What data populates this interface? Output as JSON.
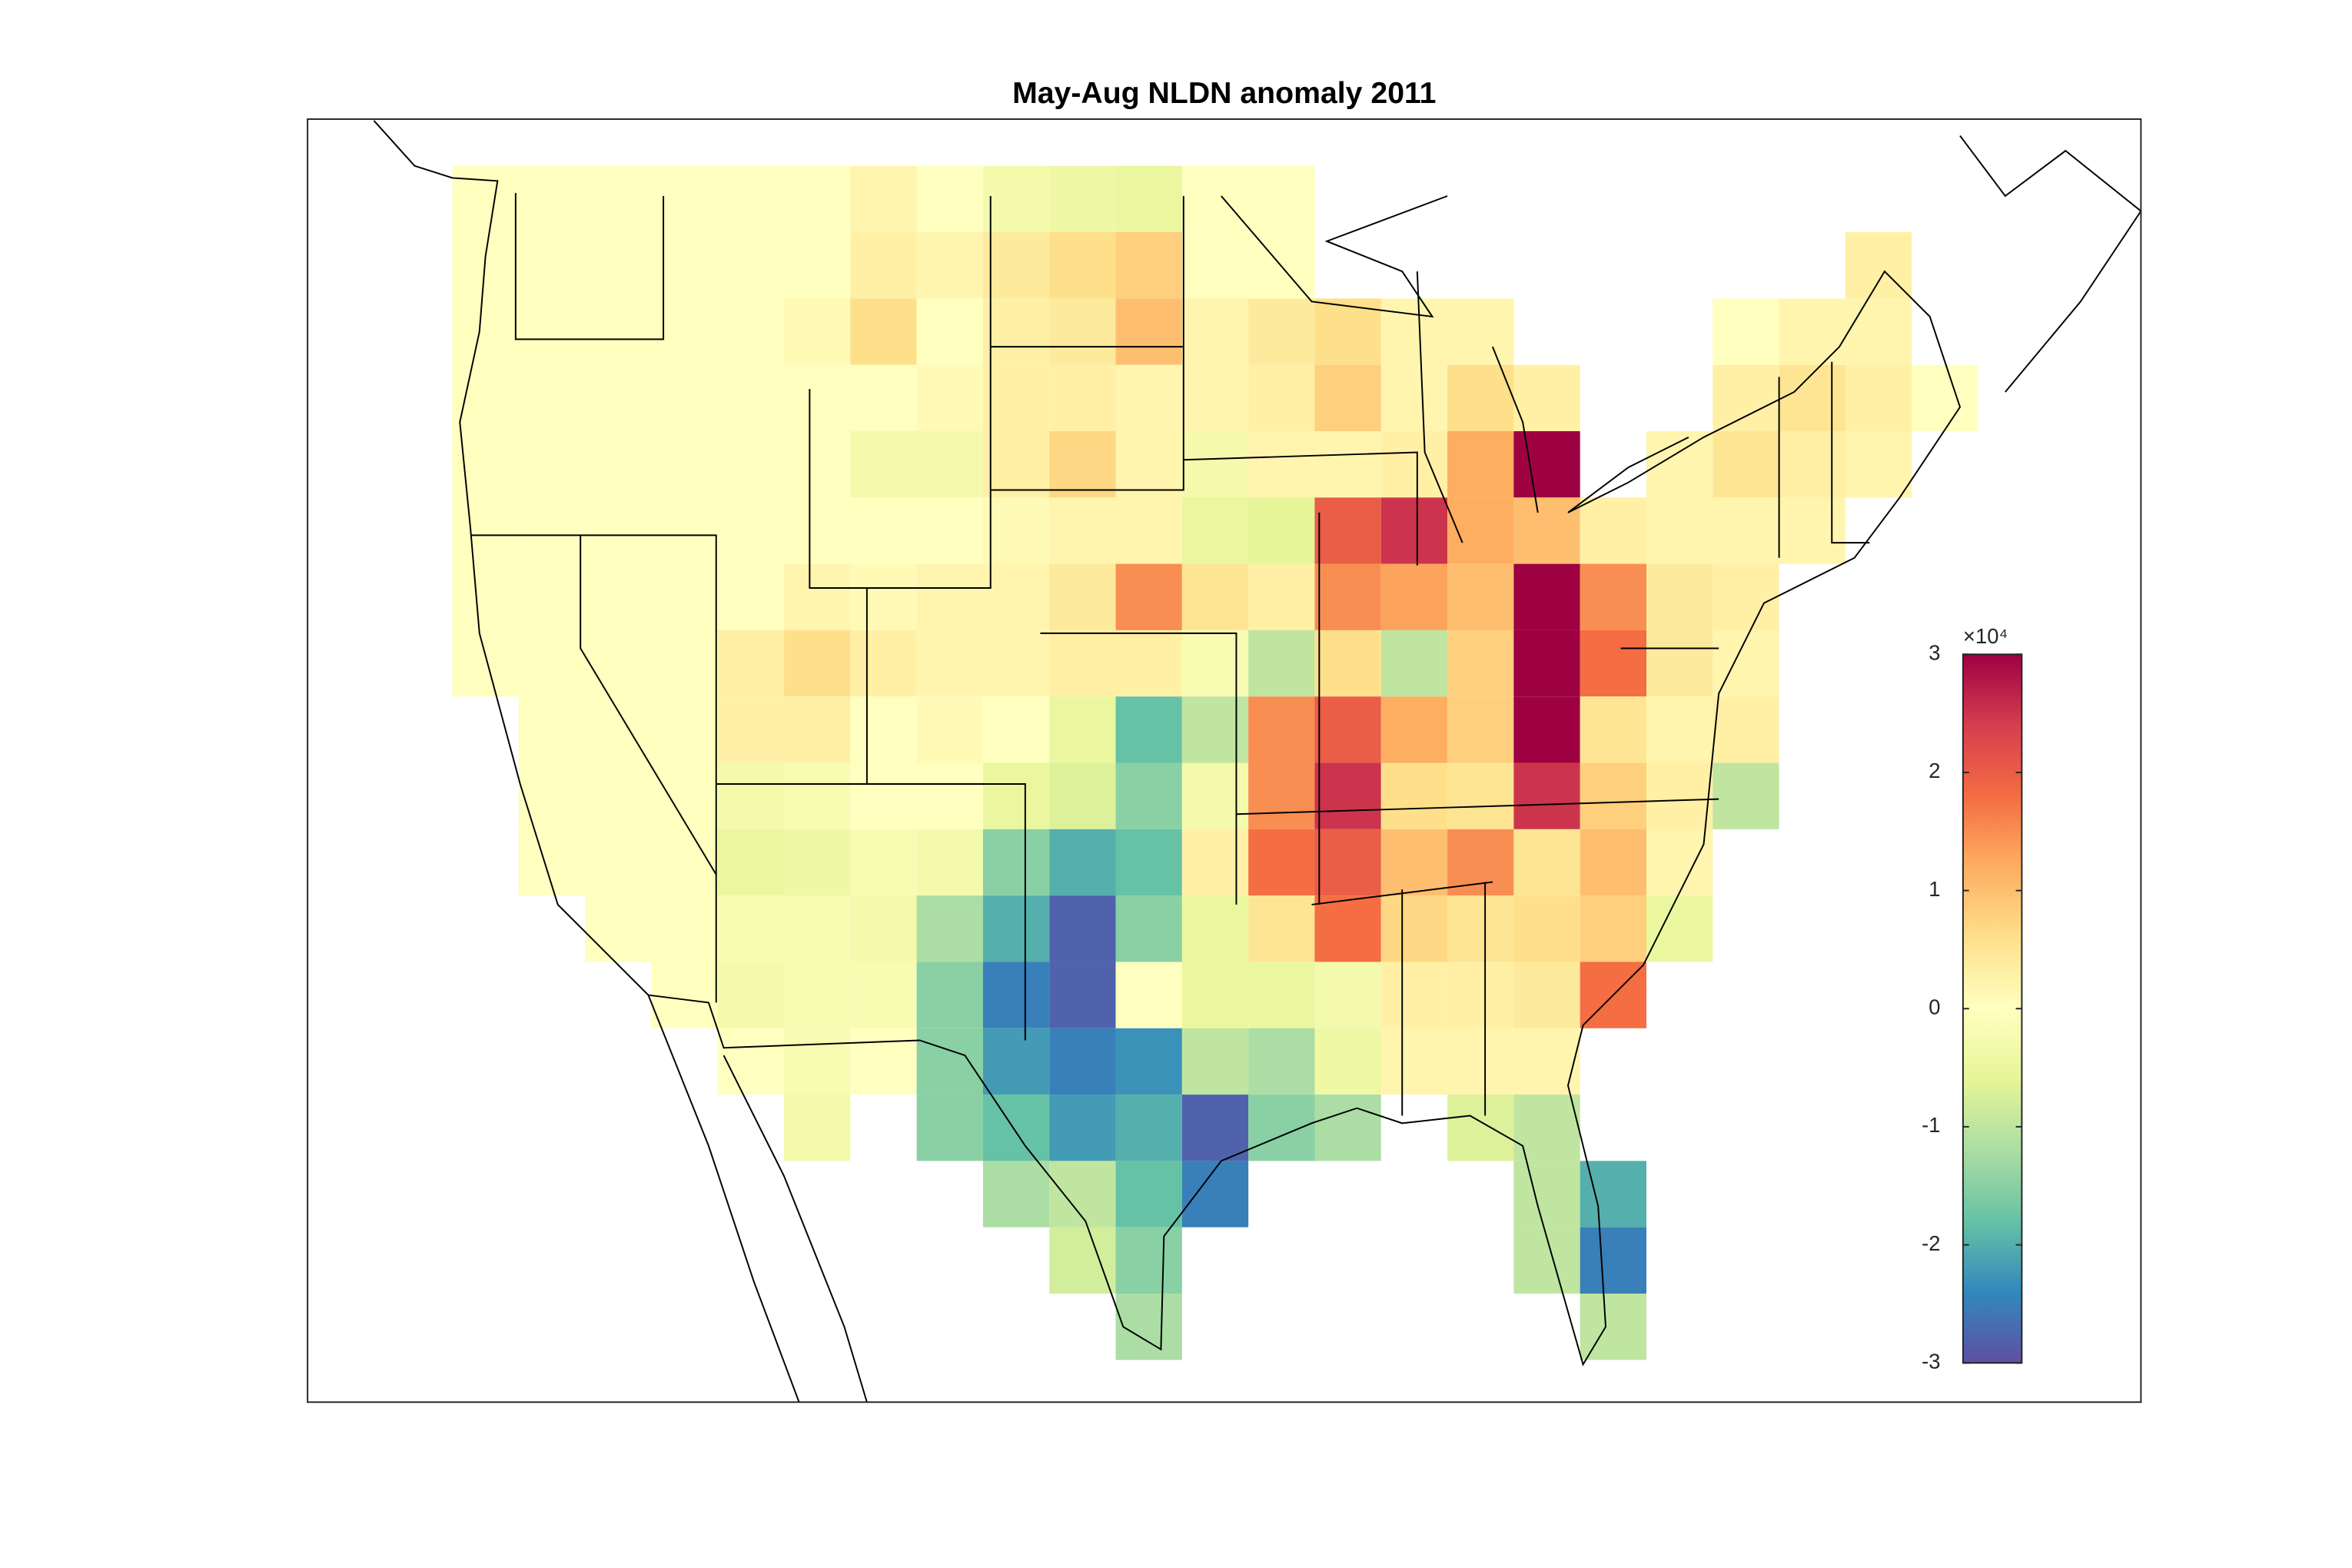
{
  "chart_data": {
    "type": "heatmap",
    "title": "May-Aug NLDN anomaly 2011",
    "colorbar_exponent": "×10⁴",
    "clim": [
      -3,
      3
    ],
    "colorbar_ticks": [
      -3,
      -2,
      -1,
      0,
      1,
      2,
      3
    ],
    "values": [
      [
        0,
        0,
        0,
        0,
        0,
        0,
        0.2,
        0,
        -0.3,
        -0.4,
        -0.5,
        0,
        0,
        null,
        null,
        null,
        null,
        null,
        null,
        null,
        null,
        null,
        null
      ],
      [
        0,
        0,
        0,
        0,
        0,
        0,
        0.3,
        0.2,
        0.4,
        0.6,
        0.8,
        0,
        0,
        null,
        null,
        null,
        null,
        null,
        null,
        null,
        null,
        0.3,
        null
      ],
      [
        0,
        0,
        0,
        0,
        0,
        0.1,
        0.6,
        0,
        0.3,
        0.4,
        1,
        0.2,
        0.4,
        0.6,
        0.2,
        0.2,
        null,
        null,
        null,
        0,
        0.2,
        0.2,
        null
      ],
      [
        0,
        0,
        0,
        0,
        0,
        0,
        0,
        0.1,
        0.3,
        0.3,
        0.2,
        0.2,
        0.3,
        0.8,
        0.2,
        0.6,
        0.3,
        null,
        null,
        0.3,
        0.5,
        0.3,
        0
      ],
      [
        0,
        0,
        0,
        0,
        0,
        0,
        -0.3,
        -0.3,
        0.3,
        0.7,
        0.2,
        -0.3,
        0.2,
        0.2,
        0.3,
        1.2,
        3,
        null,
        0.2,
        0.5,
        0.3,
        0.2,
        null
      ],
      [
        0,
        0,
        0,
        0,
        0,
        0,
        0,
        0,
        0.1,
        0.2,
        0.2,
        -0.5,
        -0.6,
        2,
        2.5,
        1.2,
        1,
        0.3,
        0.2,
        0.2,
        0.2,
        null,
        null
      ],
      [
        0,
        0,
        0,
        0,
        0,
        0.2,
        0.1,
        0.2,
        0.2,
        0.4,
        1.5,
        0.5,
        0.3,
        1.5,
        1.3,
        1,
        3,
        1.5,
        0.4,
        0.3,
        null,
        null,
        null
      ],
      [
        0,
        0,
        0,
        0,
        0.3,
        0.6,
        0.3,
        0.2,
        0.2,
        0.3,
        0.3,
        -0.2,
        -1,
        0.6,
        -1,
        0.8,
        3,
        1.8,
        0.4,
        0.2,
        null,
        null,
        null
      ],
      [
        null,
        0,
        0,
        0,
        0.3,
        0.3,
        0,
        0.1,
        0,
        -0.5,
        -1.8,
        -1,
        1.5,
        2,
        1.2,
        0.8,
        3,
        0.5,
        0.2,
        0.3,
        null,
        null,
        null
      ],
      [
        null,
        0,
        0,
        0,
        -0.3,
        -0.2,
        0,
        0,
        -0.5,
        -0.7,
        -1.5,
        -0.3,
        1.5,
        2.5,
        0.6,
        0.5,
        2.5,
        0.8,
        0.3,
        -1,
        null,
        null,
        null
      ],
      [
        null,
        0,
        0,
        0,
        -0.5,
        -0.4,
        -0.2,
        -0.3,
        -1.5,
        -2,
        -1.8,
        0.3,
        1.8,
        2,
        1,
        1.5,
        0.5,
        1,
        0.2,
        null,
        null,
        null,
        null
      ],
      [
        null,
        null,
        0,
        0,
        -0.2,
        -0.2,
        -0.3,
        -1.2,
        -2,
        -2.8,
        -1.5,
        -0.5,
        0.5,
        1.8,
        0.7,
        0.5,
        0.6,
        0.8,
        -0.5,
        null,
        null,
        null,
        null
      ],
      [
        null,
        null,
        null,
        0,
        -0.3,
        -0.2,
        -0.2,
        -1.5,
        -2.5,
        -2.8,
        0,
        -0.5,
        -0.5,
        -0.3,
        0.3,
        0.3,
        0.4,
        1.8,
        null,
        null,
        null,
        null,
        null
      ],
      [
        null,
        null,
        null,
        null,
        0,
        -0.2,
        0,
        -1.5,
        -2.2,
        -2.5,
        -2.3,
        -1,
        -1.2,
        -0.4,
        0.2,
        0.2,
        0.2,
        null,
        null,
        null,
        null,
        null,
        null
      ],
      [
        null,
        null,
        null,
        null,
        null,
        -0.3,
        null,
        -1.5,
        -1.8,
        -2.2,
        -2,
        -2.8,
        -1.5,
        -1.2,
        null,
        -0.7,
        -1,
        null,
        null,
        null,
        null,
        null,
        null
      ],
      [
        null,
        null,
        null,
        null,
        null,
        null,
        null,
        null,
        -1.2,
        -1,
        -1.8,
        -2.5,
        null,
        null,
        null,
        null,
        -1,
        -2,
        null,
        null,
        null,
        null,
        null
      ],
      [
        null,
        null,
        null,
        null,
        null,
        null,
        null,
        null,
        null,
        -0.8,
        -1.5,
        null,
        null,
        null,
        null,
        null,
        -1,
        -2.5,
        null,
        null,
        null,
        null,
        null
      ],
      [
        null,
        null,
        null,
        null,
        null,
        null,
        null,
        null,
        null,
        null,
        -1.2,
        null,
        null,
        null,
        null,
        null,
        null,
        -1,
        null,
        null,
        null,
        null,
        null
      ]
    ]
  }
}
